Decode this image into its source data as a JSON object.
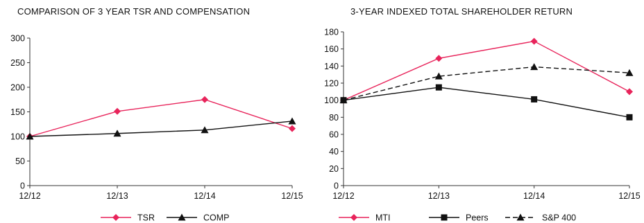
{
  "chart_data": [
    {
      "type": "line",
      "title": "COMPARISON OF 3 YEAR TSR AND COMPENSATION",
      "xlabel": "",
      "ylabel": "",
      "categories": [
        "12/12",
        "12/13",
        "12/14",
        "12/15"
      ],
      "ylim": [
        0,
        300
      ],
      "yticks": [
        "0",
        "50",
        "100",
        "150",
        "200",
        "250",
        "300"
      ],
      "grid": false,
      "legend_position": "bottom",
      "series": [
        {
          "name": "TSR",
          "values": [
            100,
            151,
            175,
            116
          ],
          "color": "#e8245b",
          "marker": "diamond",
          "dash": "solid"
        },
        {
          "name": "COMP",
          "values": [
            100,
            106,
            113,
            131
          ],
          "color": "#111111",
          "marker": "triangle",
          "dash": "solid"
        }
      ]
    },
    {
      "type": "line",
      "title": "3-YEAR INDEXED TOTAL SHAREHOLDER RETURN",
      "xlabel": "",
      "ylabel": "",
      "categories": [
        "12/12",
        "12/13",
        "12/14",
        "12/15"
      ],
      "ylim": [
        0,
        180
      ],
      "yticks": [
        "0",
        "20",
        "40",
        "60",
        "80",
        "100",
        "120",
        "140",
        "160",
        "180"
      ],
      "grid": false,
      "legend_position": "bottom",
      "series": [
        {
          "name": "MTI",
          "values": [
            100,
            149,
            169,
            110
          ],
          "color": "#e8245b",
          "marker": "diamond",
          "dash": "solid"
        },
        {
          "name": "Peers",
          "values": [
            100,
            115,
            101,
            80
          ],
          "color": "#111111",
          "marker": "square",
          "dash": "solid"
        },
        {
          "name": "S&P 400",
          "values": [
            100,
            128,
            139,
            132
          ],
          "color": "#111111",
          "marker": "triangle",
          "dash": "dashed"
        }
      ]
    }
  ]
}
